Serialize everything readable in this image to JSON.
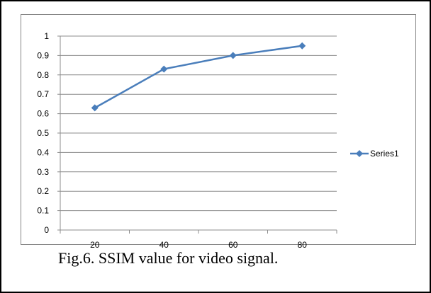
{
  "chart_data": {
    "type": "line",
    "x": [
      20,
      40,
      60,
      80
    ],
    "series": [
      {
        "name": "Series1",
        "values": [
          0.63,
          0.83,
          0.9,
          0.95
        ]
      }
    ],
    "ylim": [
      0,
      1
    ],
    "yticks": [
      "0",
      "0.1",
      "0.2",
      "0.3",
      "0.4",
      "0.5",
      "0.6",
      "0.7",
      "0.8",
      "0.9",
      "1"
    ],
    "xticks": [
      "20",
      "40",
      "60",
      "80"
    ],
    "grid": true,
    "legend": "right",
    "marker": "diamond",
    "color": "#4a7ebb"
  },
  "caption": "Fig.6. SSIM value for video signal."
}
